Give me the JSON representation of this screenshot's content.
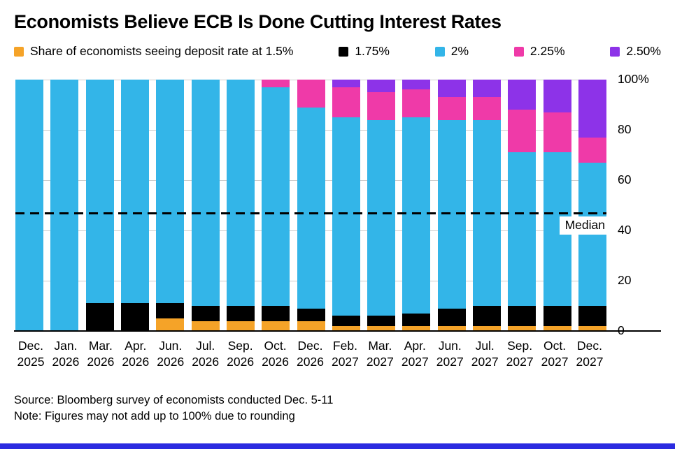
{
  "page": {
    "source": "Source: Bloomberg survey of economists conducted Dec. 5-11",
    "note": "Note: Figures may not add up to 100% due to rounding",
    "footer_bar_color": "#2b2be0"
  },
  "chart_data": {
    "type": "bar",
    "stacked": true,
    "title": "Economists Believe ECB Is Done Cutting Interest Rates",
    "legend_labels": [
      "Share of economists seeing deposit rate at 1.5%",
      "1.75%",
      "2%",
      "2.25%",
      "2.50%"
    ],
    "legend_position": "top",
    "grid": "horizontal",
    "ylim": [
      0,
      100
    ],
    "yticks": [
      {
        "value": 0,
        "label": "0"
      },
      {
        "value": 20,
        "label": "20"
      },
      {
        "value": 40,
        "label": "40"
      },
      {
        "value": 60,
        "label": "60"
      },
      {
        "value": 80,
        "label": "80"
      },
      {
        "value": 100,
        "label": "100%"
      }
    ],
    "categories": [
      [
        "Dec.",
        "2025"
      ],
      [
        "Jan.",
        "2026"
      ],
      [
        "Mar.",
        "2026"
      ],
      [
        "Apr.",
        "2026"
      ],
      [
        "Jun.",
        "2026"
      ],
      [
        "Jul.",
        "2026"
      ],
      [
        "Sep.",
        "2026"
      ],
      [
        "Oct.",
        "2026"
      ],
      [
        "Dec.",
        "2026"
      ],
      [
        "Feb.",
        "2027"
      ],
      [
        "Mar.",
        "2027"
      ],
      [
        "Apr.",
        "2027"
      ],
      [
        "Jun.",
        "2027"
      ],
      [
        "Jul.",
        "2027"
      ],
      [
        "Sep.",
        "2027"
      ],
      [
        "Oct.",
        "2027"
      ],
      [
        "Dec.",
        "2027"
      ]
    ],
    "series": [
      {
        "name": "1.5%",
        "color": "#f5a328",
        "values": [
          0,
          0,
          0,
          0,
          5,
          4,
          4,
          4,
          4,
          2,
          2,
          2,
          2,
          2,
          2,
          2,
          2
        ]
      },
      {
        "name": "1.75%",
        "color": "#000000",
        "values": [
          0,
          0,
          11,
          11,
          6,
          6,
          6,
          6,
          5,
          4,
          4,
          5,
          7,
          8,
          8,
          8,
          8
        ]
      },
      {
        "name": "2%",
        "color": "#33b5e8",
        "values": [
          100,
          100,
          89,
          89,
          89,
          90,
          90,
          87,
          80,
          79,
          78,
          78,
          75,
          74,
          61,
          61,
          57
        ]
      },
      {
        "name": "2.25%",
        "color": "#ef3aa8",
        "values": [
          0,
          0,
          0,
          0,
          0,
          0,
          0,
          3,
          11,
          12,
          11,
          11,
          9,
          9,
          17,
          16,
          10
        ]
      },
      {
        "name": "2.50%",
        "color": "#8d33e8",
        "values": [
          0,
          0,
          0,
          0,
          0,
          0,
          0,
          0,
          0,
          3,
          5,
          4,
          7,
          7,
          12,
          13,
          23
        ]
      }
    ],
    "median": {
      "value": 47,
      "label": "Median"
    }
  }
}
